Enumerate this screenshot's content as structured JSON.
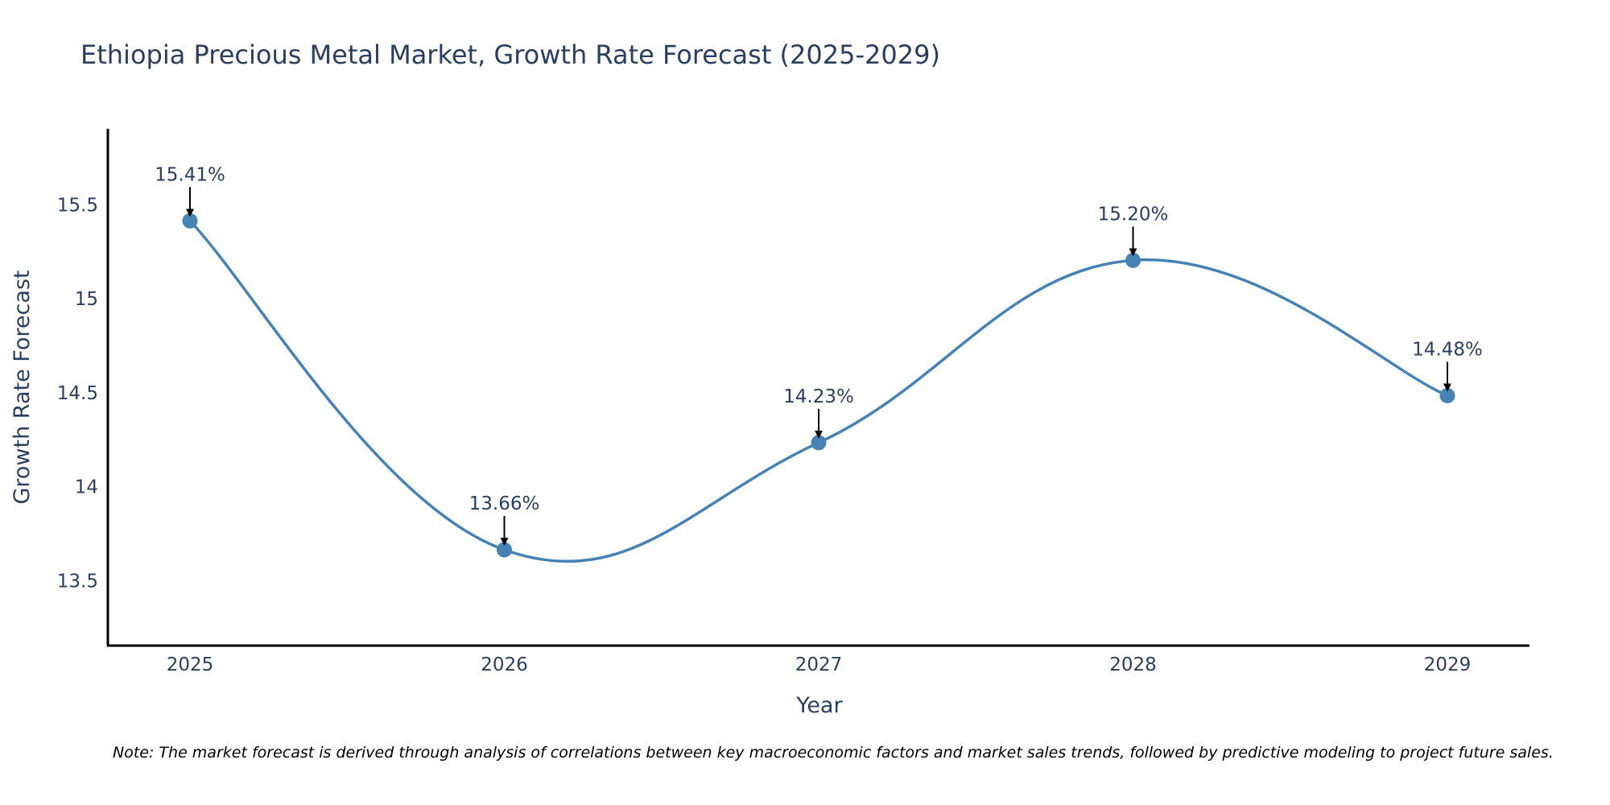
{
  "chart_data": {
    "type": "line",
    "title": "Ethiopia Precious Metal Market, Growth Rate Forecast (2025-2029)",
    "xlabel": "Year",
    "ylabel": "Growth Rate Forecast",
    "categories": [
      "2025",
      "2026",
      "2027",
      "2028",
      "2029"
    ],
    "series": [
      {
        "name": "Growth Rate Forecast",
        "values": [
          15.41,
          13.66,
          14.23,
          15.2,
          14.48
        ],
        "labels": [
          "15.41%",
          "13.66%",
          "14.23%",
          "15.20%",
          "14.48%"
        ]
      }
    ],
    "yticks": [
      13.5,
      14,
      14.5,
      15,
      15.5
    ],
    "ytick_labels": [
      "13.5",
      "14",
      "14.5",
      "15",
      "15.5"
    ],
    "ylim": [
      13.15,
      15.9
    ],
    "grid": false,
    "legend": "none",
    "colors": {
      "line": "#4682b4",
      "marker": "#4682b4",
      "arrow": "#000000",
      "text": "#2a3f5f",
      "axis": "#000000"
    },
    "note": "Note: The market forecast is derived through analysis of correlations between key macroeconomic factors and market sales trends, followed by predictive modeling to project future sales."
  }
}
